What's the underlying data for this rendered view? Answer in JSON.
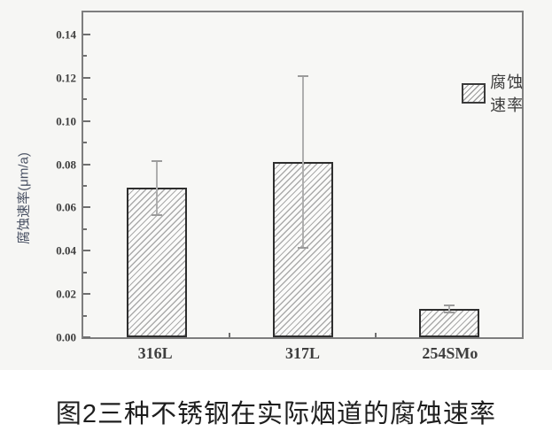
{
  "figure": {
    "caption": "图2三种不锈钢在实际烟道的腐蚀速率",
    "background_color": "#f6f6f4"
  },
  "chart_data": {
    "type": "bar",
    "title": "",
    "xlabel": "",
    "ylabel": "腐蚀速率(μm/a)",
    "categories": [
      "316L",
      "317L",
      "254SMo"
    ],
    "series": [
      {
        "name": "腐蚀速率",
        "values": [
          0.069,
          0.081,
          0.013
        ],
        "errors": [
          0.013,
          0.04,
          0.002
        ]
      }
    ],
    "ylim": [
      0,
      0.1502
    ],
    "yticks": [
      0.0,
      0.02,
      0.04,
      0.06,
      0.08,
      0.1,
      0.12,
      0.14
    ],
    "ytick_labels": [
      "0.00",
      "0.02",
      "0.04",
      "0.06",
      "0.08",
      "0.10",
      "0.12",
      "0.14"
    ],
    "minor_yticks": [
      0.01,
      0.03,
      0.05,
      0.07,
      0.09,
      0.11,
      0.13
    ],
    "legend": {
      "label": "腐蚀速率",
      "position": "upper-right"
    },
    "grid": false,
    "bar_style": {
      "hatch": "diagonal-forward",
      "fill_color": "#fbfbfa",
      "hatch_color": "#ababab",
      "edge_color": "#2e2e2e",
      "error_bar_color": "#a8a8a8"
    }
  }
}
